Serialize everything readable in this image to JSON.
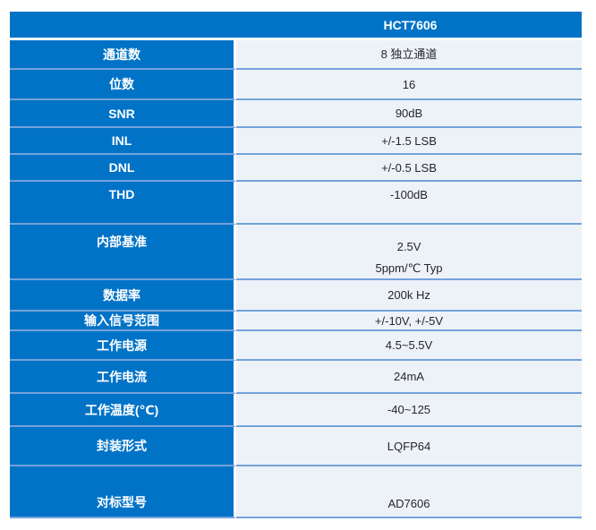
{
  "colors": {
    "accent": "#0173c7",
    "cell": "#edf2f9",
    "grid": "#74a2d9",
    "header-text": "#ffffff",
    "value-text": "#262626"
  },
  "header": {
    "title": "HCT7606"
  },
  "spec_table": {
    "rows": [
      {
        "label": "通道数",
        "value": "8 独立通道"
      },
      {
        "label": "位数",
        "value": "16"
      },
      {
        "label": "SNR",
        "value": "90dB"
      },
      {
        "label": "INL",
        "value": "+/-1.5 LSB"
      },
      {
        "label": "DNL",
        "value": "+/-0.5 LSB"
      },
      {
        "label": "THD",
        "value": "-100dB"
      },
      {
        "label": "内部基准",
        "value_lines": [
          "2.5V",
          "5ppm/℃ Typ"
        ]
      },
      {
        "label": "数据率",
        "value": "200k Hz"
      },
      {
        "label": "输入信号范围",
        "value": "+/-10V, +/-5V"
      },
      {
        "label": "工作电源",
        "value": "4.5~5.5V"
      },
      {
        "label": "工作电流",
        "value": "24mA"
      },
      {
        "label": "工作温度(℃)",
        "value": "-40~125"
      },
      {
        "label": "封装形式",
        "value": "LQFP64"
      },
      {
        "label": "对标型号",
        "value": "AD7606"
      }
    ]
  }
}
